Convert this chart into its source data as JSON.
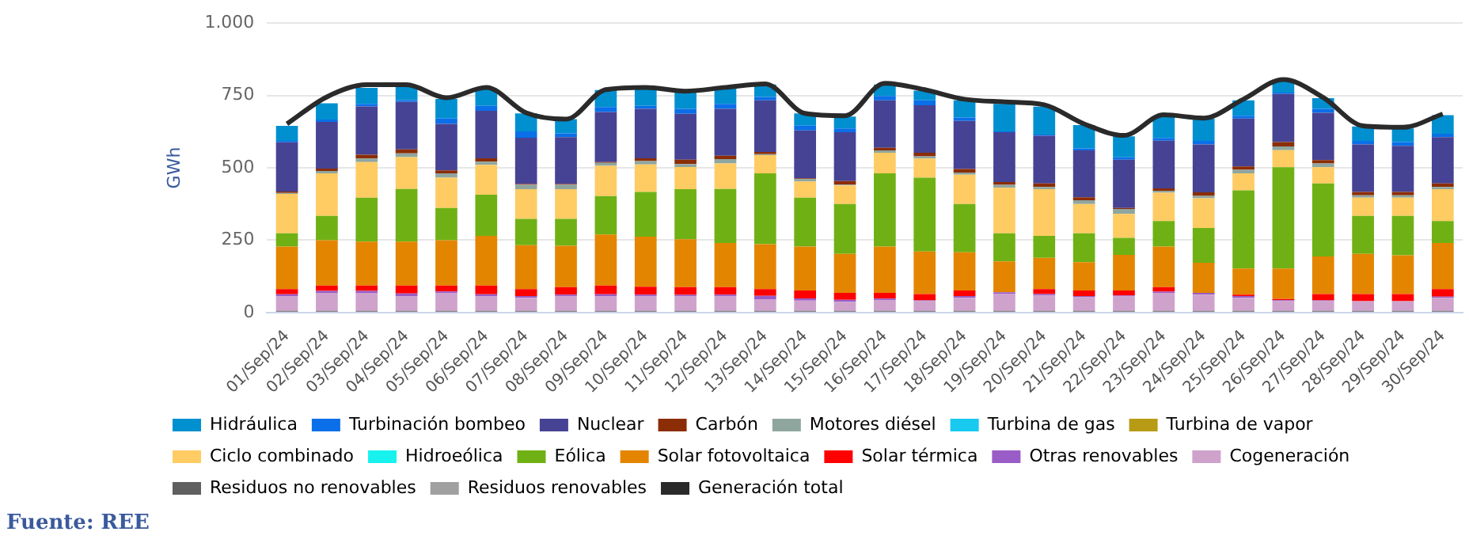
{
  "chart_data": {
    "type": "bar",
    "stacked": true,
    "ylabel": "GWh",
    "legend": "bottom",
    "grid": "y",
    "marker": "none",
    "categories": [
      "01/Sep/24",
      "02/Sep/24",
      "03/Sep/24",
      "04/Sep/24",
      "05/Sep/24",
      "06/Sep/24",
      "07/Sep/24",
      "08/Sep/24",
      "09/Sep/24",
      "10/Sep/24",
      "11/Sep/24",
      "12/Sep/24",
      "13/Sep/24",
      "14/Sep/24",
      "15/Sep/24",
      "16/Sep/24",
      "17/Sep/24",
      "18/Sep/24",
      "19/Sep/24",
      "20/Sep/24",
      "21/Sep/24",
      "22/Sep/24",
      "23/Sep/24",
      "24/Sep/24",
      "25/Sep/24",
      "26/Sep/24",
      "27/Sep/24",
      "28/Sep/24",
      "29/Sep/24",
      "30/Sep/24"
    ],
    "ylim": [
      0,
      1000
    ],
    "yticks": [
      0,
      250,
      500,
      750,
      {
        "value": 1000,
        "label": "1.000"
      }
    ],
    "series": [
      {
        "name": "Residuos renovables",
        "color": "#a0a0a0",
        "values": [
          3,
          3,
          3,
          3,
          3,
          3,
          3,
          3,
          3,
          3,
          3,
          3,
          3,
          3,
          3,
          3,
          3,
          3,
          3,
          3,
          3,
          3,
          3,
          3,
          3,
          3,
          3,
          3,
          3,
          3
        ]
      },
      {
        "name": "Residuos no renovables",
        "color": "#5f5f5f",
        "values": [
          3,
          3,
          3,
          3,
          3,
          3,
          3,
          3,
          3,
          3,
          3,
          3,
          3,
          3,
          3,
          3,
          3,
          3,
          3,
          3,
          3,
          3,
          3,
          3,
          3,
          3,
          3,
          3,
          3,
          3
        ]
      },
      {
        "name": "Cogeneración",
        "color": "#cfa2cc",
        "values": [
          50,
          62,
          62,
          50,
          62,
          50,
          45,
          50,
          50,
          50,
          50,
          50,
          40,
          35,
          31,
          36,
          33,
          45,
          58,
          53,
          48,
          50,
          62,
          56,
          45,
          33,
          33,
          33,
          33,
          45
        ]
      },
      {
        "name": "Otras renovables",
        "color": "#9a5cc6",
        "values": [
          7,
          7,
          7,
          10,
          5,
          7,
          6,
          6,
          7,
          6,
          5,
          6,
          12,
          8,
          7,
          6,
          3,
          6,
          6,
          5,
          3,
          3,
          4,
          6,
          6,
          4,
          3,
          0,
          0,
          4
        ]
      },
      {
        "name": "Solar térmica",
        "color": "#ff0000",
        "values": [
          18,
          18,
          18,
          27,
          20,
          30,
          24,
          26,
          30,
          27,
          27,
          26,
          23,
          27,
          24,
          20,
          22,
          19,
          0,
          17,
          19,
          17,
          16,
          0,
          5,
          4,
          22,
          25,
          25,
          26
        ]
      },
      {
        "name": "Solar fotovoltaica",
        "color": "#e48500",
        "values": [
          147,
          157,
          152,
          152,
          157,
          172,
          152,
          143,
          177,
          173,
          165,
          152,
          155,
          152,
          135,
          160,
          147,
          132,
          107,
          108,
          98,
          123,
          140,
          104,
          90,
          105,
          130,
          139,
          134,
          159
        ]
      },
      {
        "name": "Eólica",
        "color": "#6fb114",
        "values": [
          46,
          84,
          152,
          182,
          111,
          142,
          91,
          93,
          132,
          155,
          173,
          187,
          245,
          169,
          172,
          253,
          255,
          167,
          97,
          76,
          100,
          59,
          88,
          120,
          270,
          350,
          252,
          131,
          136,
          76
        ]
      },
      {
        "name": "Hidroeólica",
        "color": "#17f2ef",
        "values": [
          null,
          null,
          null,
          null,
          null,
          null,
          null,
          null,
          null,
          null,
          null,
          null,
          null,
          null,
          null,
          null,
          null,
          null,
          null,
          null,
          null,
          null,
          null,
          null,
          null,
          null,
          null,
          null,
          null,
          null
        ]
      },
      {
        "name": "Ciclo combinado",
        "color": "#ffcb63",
        "values": [
          136,
          147,
          123,
          110,
          105,
          103,
          102,
          102,
          105,
          95,
          77,
          88,
          63,
          56,
          64,
          71,
          66,
          101,
          157,
          161,
          101,
          83,
          98,
          103,
          59,
          59,
          56,
          63,
          63,
          110
        ]
      },
      {
        "name": "Turbina de vapor",
        "color": "#b79b14",
        "values": [
          null,
          null,
          null,
          null,
          null,
          null,
          null,
          null,
          null,
          null,
          null,
          null,
          null,
          null,
          null,
          null,
          null,
          null,
          null,
          null,
          null,
          null,
          null,
          null,
          null,
          null,
          null,
          null,
          null,
          null
        ]
      },
      {
        "name": "Turbina de gas",
        "color": "#18c9f0",
        "values": [
          null,
          null,
          null,
          null,
          null,
          null,
          null,
          null,
          null,
          null,
          null,
          null,
          null,
          null,
          null,
          null,
          null,
          null,
          null,
          null,
          null,
          null,
          null,
          null,
          null,
          null,
          null,
          null,
          null,
          null
        ]
      },
      {
        "name": "Motores diésel",
        "color": "#8fa69f",
        "values": [
          3,
          8,
          12,
          13,
          15,
          11,
          15,
          15,
          10,
          11,
          10,
          15,
          3,
          8,
          3,
          8,
          8,
          8,
          10,
          8,
          13,
          17,
          7,
          8,
          12,
          13,
          13,
          8,
          8,
          8
        ]
      },
      {
        "name": "Carbón",
        "color": "#8b2d07",
        "values": [
          5,
          8,
          13,
          14,
          10,
          12,
          3,
          3,
          3,
          10,
          15,
          12,
          8,
          3,
          12,
          9,
          12,
          12,
          10,
          12,
          10,
          3,
          8,
          12,
          12,
          15,
          12,
          12,
          12,
          12
        ]
      },
      {
        "name": "Nuclear",
        "color": "#464394",
        "values": [
          170,
          162,
          167,
          164,
          161,
          164,
          160,
          162,
          173,
          171,
          159,
          162,
          178,
          165,
          169,
          164,
          164,
          166,
          172,
          165,
          162,
          167,
          165,
          166,
          165,
          166,
          163,
          164,
          159,
          160
        ]
      },
      {
        "name": "Turbinación bombeo",
        "color": "#0a6fe8",
        "values": [
          5,
          8,
          9,
          6,
          18,
          17,
          22,
          13,
          17,
          10,
          17,
          17,
          12,
          17,
          13,
          15,
          17,
          12,
          3,
          4,
          7,
          8,
          9,
          12,
          10,
          5,
          14,
          12,
          13,
          12
        ]
      },
      {
        "name": "Hidráulica",
        "color": "#0090d0",
        "values": [
          52,
          56,
          55,
          49,
          68,
          61,
          62,
          49,
          59,
          61,
          57,
          54,
          43,
          42,
          41,
          40,
          34,
          59,
          95,
          96,
          81,
          73,
          76,
          77,
          53,
          40,
          37,
          50,
          47,
          64
        ]
      },
      {
        "name": "Generación total",
        "type": "line",
        "color": "#2a2a2a",
        "values": [
          652,
          745,
          787,
          787,
          742,
          778,
          690,
          668,
          770,
          778,
          765,
          778,
          790,
          688,
          680,
          792,
          770,
          737,
          728,
          718,
          652,
          612,
          683,
          672,
          737,
          805,
          743,
          645,
          640,
          686
        ]
      }
    ],
    "annotations": [
      "Fuente: REE"
    ]
  }
}
